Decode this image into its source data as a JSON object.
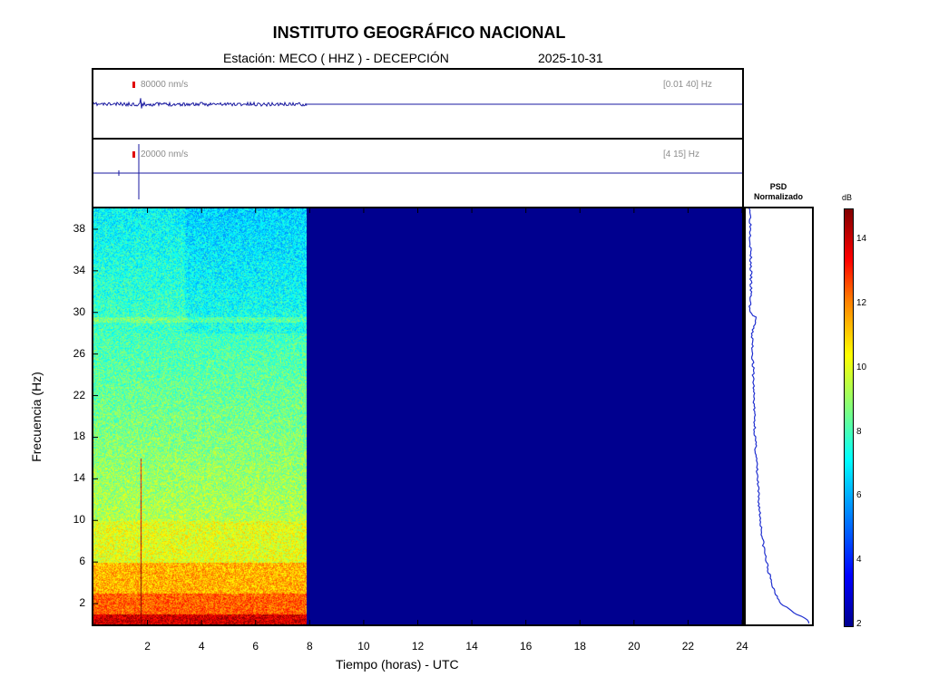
{
  "header": {
    "title": "INSTITUTO GEOGRÁFICO NACIONAL",
    "station": "Estación:  MECO ( HHZ ) - DECEPCIÓN",
    "date": "2025-10-31"
  },
  "traces": [
    {
      "scale": "80000 nm/s",
      "band": "[0.01 40] Hz"
    },
    {
      "scale": "20000 nm/s",
      "band": "[4 15] Hz"
    }
  ],
  "psd": {
    "title_line1": "PSD",
    "title_line2": "Normalizado"
  },
  "colorbar": {
    "unit": "dB",
    "ticks": [
      2,
      4,
      6,
      8,
      10,
      12,
      14
    ],
    "range": [
      2,
      15
    ]
  },
  "colors": {
    "trace": "#1a1aa0",
    "psd_line": "#1f2fd0",
    "empty_fill": "#00008f",
    "scale_bar": "#e00000"
  },
  "chart_data": {
    "type": "heatmap",
    "xlabel": "Tiempo (horas) - UTC",
    "ylabel": "Frecuencia  (Hz)",
    "xlim": [
      0,
      24
    ],
    "ylim": [
      0,
      40
    ],
    "xticks": [
      2,
      4,
      6,
      8,
      10,
      12,
      14,
      16,
      18,
      20,
      22,
      24
    ],
    "yticks": [
      2,
      6,
      10,
      14,
      18,
      22,
      26,
      30,
      34,
      38
    ],
    "data_end_hour": 7.9,
    "event_hour": 1.75,
    "psd_profile": {
      "freq": [
        0.5,
        1,
        2,
        3,
        4,
        6,
        8,
        10,
        12,
        14,
        16,
        18,
        20,
        22,
        24,
        26,
        28,
        29,
        29.5,
        30,
        31,
        32,
        34,
        36,
        38,
        40
      ],
      "value": [
        1.0,
        0.8,
        0.55,
        0.45,
        0.38,
        0.3,
        0.24,
        0.2,
        0.17,
        0.15,
        0.13,
        0.11,
        0.1,
        0.09,
        0.08,
        0.07,
        0.06,
        0.1,
        0.13,
        0.02,
        0.03,
        0.04,
        0.04,
        0.035,
        0.035,
        0.03
      ]
    }
  }
}
